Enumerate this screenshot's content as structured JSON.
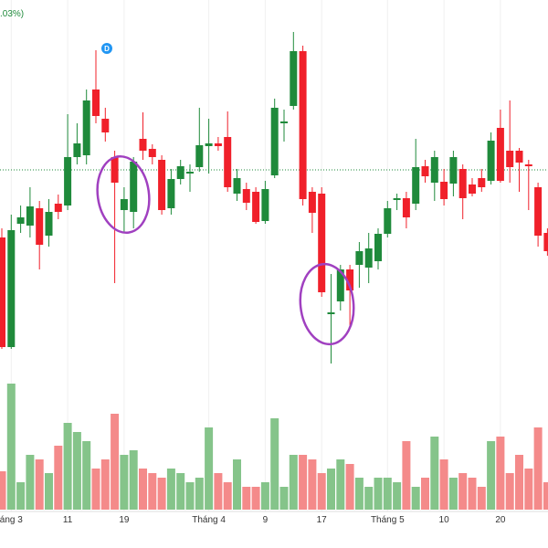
{
  "chart_data": {
    "type": "candlestick",
    "header_text": ".03%)",
    "up_color": "#1f8a3b",
    "down_color": "#f0202a",
    "volume_up_color": "#85c48a",
    "volume_down_color": "#f48a8a",
    "categories": [
      null,
      "áng 3",
      null,
      null,
      null,
      null,
      null,
      "11",
      null,
      null,
      null,
      null,
      null,
      "19",
      null,
      null,
      null,
      null,
      null,
      null,
      null,
      null,
      "Tháng 4",
      null,
      null,
      null,
      null,
      null,
      "9",
      null,
      null,
      null,
      null,
      null,
      "17",
      null,
      null,
      null,
      null,
      null,
      null,
      "Tháng 5",
      null,
      null,
      null,
      null,
      null,
      "10",
      null,
      null,
      null,
      null,
      null,
      "20",
      null,
      null,
      null,
      null,
      null
    ],
    "open": [
      160,
      40,
      175,
      173,
      192,
      162,
      197,
      195,
      248,
      250,
      322,
      290,
      248,
      190,
      188,
      268,
      257,
      245,
      192,
      224,
      230,
      237,
      260,
      263,
      270,
      208,
      213,
      210,
      178,
      228,
      285,
      304,
      364,
      210,
      208,
      76,
      90,
      125,
      130,
      127,
      134,
      164,
      201,
      203,
      197,
      238,
      220,
      221,
      219,
      235,
      218,
      225,
      222,
      280,
      255,
      255,
      240,
      215,
      165
    ],
    "high": [
      170,
      185,
      195,
      215,
      200,
      202,
      207,
      295,
      285,
      322,
      365,
      302,
      255,
      215,
      248,
      297,
      262,
      250,
      235,
      245,
      240,
      302,
      290,
      270,
      298,
      235,
      220,
      215,
      222,
      312,
      300,
      385,
      370,
      215,
      215,
      120,
      130,
      130,
      155,
      165,
      170,
      200,
      208,
      210,
      268,
      245,
      255,
      235,
      255,
      240,
      225,
      235,
      275,
      300,
      310,
      258,
      245,
      220,
      170
    ],
    "low": [
      38,
      38,
      165,
      160,
      125,
      150,
      180,
      190,
      240,
      240,
      285,
      265,
      110,
      165,
      170,
      245,
      240,
      185,
      185,
      218,
      210,
      232,
      230,
      255,
      210,
      200,
      190,
      175,
      175,
      225,
      265,
      300,
      195,
      165,
      95,
      22,
      80,
      60,
      105,
      110,
      125,
      160,
      190,
      170,
      190,
      220,
      200,
      195,
      205,
      180,
      205,
      210,
      218,
      220,
      220,
      210,
      190,
      150,
      140
    ],
    "close": [
      40,
      168,
      182,
      194,
      152,
      188,
      188,
      248,
      263,
      310,
      293,
      275,
      220,
      202,
      243,
      255,
      248,
      190,
      224,
      238,
      232,
      261,
      263,
      260,
      215,
      225,
      198,
      177,
      213,
      302,
      287,
      364,
      202,
      187,
      100,
      78,
      125,
      102,
      145,
      148,
      164,
      192,
      203,
      182,
      237,
      227,
      248,
      202,
      248,
      203,
      208,
      215,
      266,
      222,
      237,
      242,
      238,
      162,
      145
    ],
    "volume": [
      42,
      138,
      30,
      60,
      55,
      40,
      70,
      95,
      85,
      75,
      45,
      55,
      105,
      60,
      65,
      45,
      40,
      35,
      45,
      40,
      30,
      35,
      90,
      40,
      30,
      55,
      25,
      25,
      30,
      100,
      25,
      60,
      60,
      55,
      40,
      45,
      55,
      50,
      35,
      25,
      35,
      35,
      30,
      75,
      25,
      35,
      80,
      55,
      35,
      40,
      35,
      25,
      75,
      80,
      40,
      60,
      45,
      90,
      30
    ],
    "ylim": [
      0,
      420
    ],
    "volume_lim": [
      0,
      150
    ],
    "price_line": 234,
    "markers": [
      {
        "index": 10,
        "label": "D"
      }
    ]
  }
}
